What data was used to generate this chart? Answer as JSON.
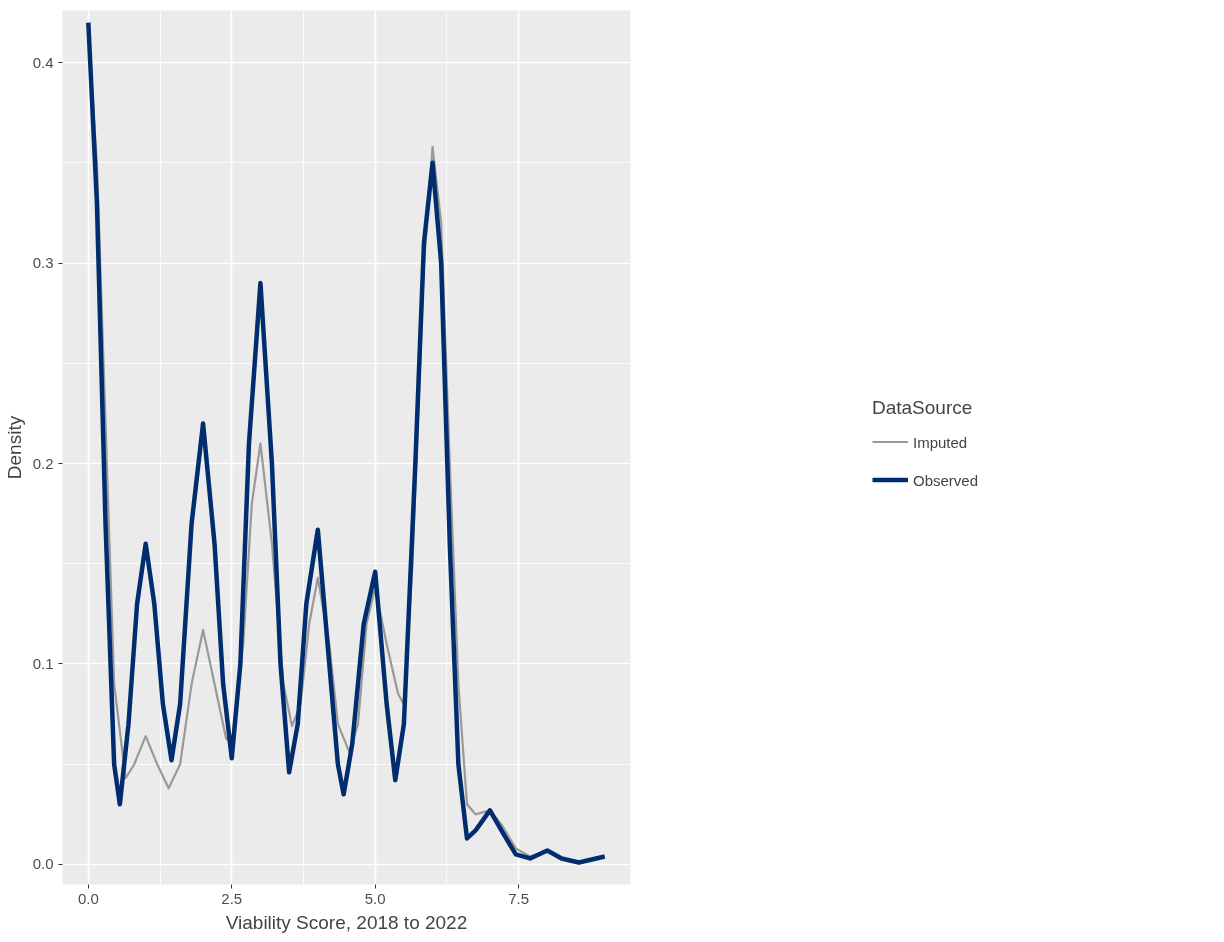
{
  "chart_data": {
    "type": "line",
    "xlabel": "Viability Score, 2018 to 2022",
    "ylabel": "Density",
    "legend_title": "DataSource",
    "legend": "right",
    "grid": true,
    "xlim": [
      -0.45,
      9.45
    ],
    "ylim": [
      -0.01,
      0.426
    ],
    "xticks": [
      {
        "value": 0,
        "label": "0.0"
      },
      2.5,
      {
        "value": 5,
        "label": "5.0"
      },
      7.5
    ],
    "yticks": [
      {
        "value": 0,
        "label": "0.0"
      },
      0.1,
      0.2,
      0.3,
      0.4
    ],
    "series": [
      {
        "name": "Imputed",
        "color": "#999999",
        "x": [
          0,
          0.15,
          0.3,
          0.45,
          0.65,
          0.8,
          1.0,
          1.2,
          1.4,
          1.6,
          1.8,
          2.0,
          2.2,
          2.4,
          2.5,
          2.7,
          2.85,
          3.0,
          3.2,
          3.4,
          3.55,
          3.7,
          3.85,
          4.0,
          4.2,
          4.35,
          4.55,
          4.7,
          4.85,
          5.0,
          5.2,
          5.4,
          5.5,
          5.65,
          5.85,
          6.0,
          6.15,
          6.3,
          6.45,
          6.6,
          6.75,
          7.0,
          7.2,
          7.45,
          7.7,
          8.0,
          8.25,
          8.55,
          9.0
        ],
        "values": [
          0.415,
          0.35,
          0.22,
          0.09,
          0.043,
          0.05,
          0.064,
          0.05,
          0.038,
          0.05,
          0.09,
          0.117,
          0.09,
          0.063,
          0.06,
          0.11,
          0.18,
          0.21,
          0.16,
          0.09,
          0.069,
          0.08,
          0.12,
          0.143,
          0.11,
          0.07,
          0.056,
          0.07,
          0.12,
          0.138,
          0.11,
          0.085,
          0.08,
          0.15,
          0.3,
          0.358,
          0.32,
          0.2,
          0.09,
          0.03,
          0.025,
          0.027,
          0.02,
          0.008,
          0.004,
          0.007,
          0.003,
          0.001,
          0.004
        ]
      },
      {
        "name": "Observed",
        "color": "#002d6e",
        "x": [
          0,
          0.15,
          0.3,
          0.45,
          0.55,
          0.7,
          0.85,
          1.0,
          1.15,
          1.3,
          1.45,
          1.6,
          1.8,
          2.0,
          2.2,
          2.35,
          2.5,
          2.65,
          2.8,
          3.0,
          3.2,
          3.35,
          3.5,
          3.65,
          3.8,
          4.0,
          4.2,
          4.35,
          4.45,
          4.6,
          4.8,
          5.0,
          5.2,
          5.35,
          5.5,
          5.7,
          5.85,
          6.0,
          6.15,
          6.3,
          6.45,
          6.6,
          6.75,
          7.0,
          7.2,
          7.45,
          7.7,
          8.0,
          8.25,
          8.55,
          9.0
        ],
        "values": [
          0.42,
          0.33,
          0.17,
          0.05,
          0.03,
          0.07,
          0.13,
          0.16,
          0.13,
          0.08,
          0.052,
          0.08,
          0.17,
          0.22,
          0.16,
          0.09,
          0.053,
          0.1,
          0.21,
          0.29,
          0.2,
          0.1,
          0.046,
          0.07,
          0.13,
          0.167,
          0.1,
          0.05,
          0.035,
          0.06,
          0.12,
          0.146,
          0.08,
          0.042,
          0.07,
          0.2,
          0.31,
          0.35,
          0.3,
          0.16,
          0.05,
          0.013,
          0.017,
          0.027,
          0.017,
          0.005,
          0.003,
          0.007,
          0.003,
          0.001,
          0.004
        ]
      }
    ]
  }
}
